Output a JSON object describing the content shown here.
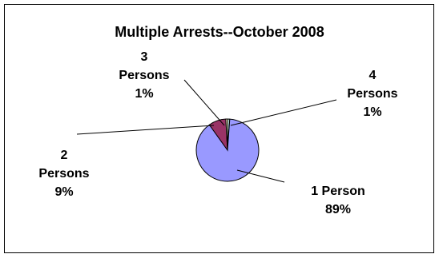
{
  "chart_data": {
    "type": "pie",
    "title": "Multiple Arrests--October 2008",
    "slices": [
      {
        "category": "1 Person",
        "percent_label": "89%",
        "value": 89,
        "color": "#9999ff"
      },
      {
        "category": "2 Persons",
        "percent_label": "9%",
        "value": 9,
        "color": "#993366"
      },
      {
        "category": "3 Persons",
        "percent_label": "1%",
        "value": 1,
        "color": "#ffffcc"
      },
      {
        "category": "4 Persons",
        "percent_label": "1%",
        "value": 1,
        "color": "#ccffff"
      }
    ],
    "label_lines": [
      [
        "1 Person",
        "89%"
      ],
      [
        "2",
        "Persons",
        "9%"
      ],
      [
        "3",
        "Persons",
        "1%"
      ],
      [
        "4",
        "Persons",
        "1%"
      ]
    ],
    "legend": "none"
  }
}
